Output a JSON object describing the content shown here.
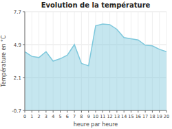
{
  "chart_data": {
    "type": "area",
    "title": "Evolution de la température",
    "xlabel": "heure par heure",
    "ylabel": "Température en °C",
    "x": [
      0,
      1,
      2,
      3,
      4,
      5,
      6,
      7,
      8,
      9,
      10,
      11,
      12,
      13,
      14,
      15,
      16,
      17,
      18,
      19,
      20
    ],
    "values": [
      4.3,
      3.9,
      3.8,
      4.3,
      3.5,
      3.7,
      4.0,
      4.9,
      3.3,
      3.1,
      6.5,
      6.65,
      6.6,
      6.2,
      5.5,
      5.4,
      5.3,
      4.85,
      4.8,
      4.5,
      4.3
    ],
    "color": "#7ec8dc",
    "xlim": [
      0,
      20
    ],
    "xticks": [
      0,
      1,
      2,
      3,
      4,
      5,
      6,
      7,
      8,
      9,
      10,
      11,
      12,
      13,
      14,
      15,
      16,
      17,
      18,
      19,
      20
    ],
    "ylim": [
      -0.7,
      7.7
    ],
    "yticks": [
      -0.7,
      2.1,
      4.9,
      7.7
    ],
    "grid": true
  }
}
